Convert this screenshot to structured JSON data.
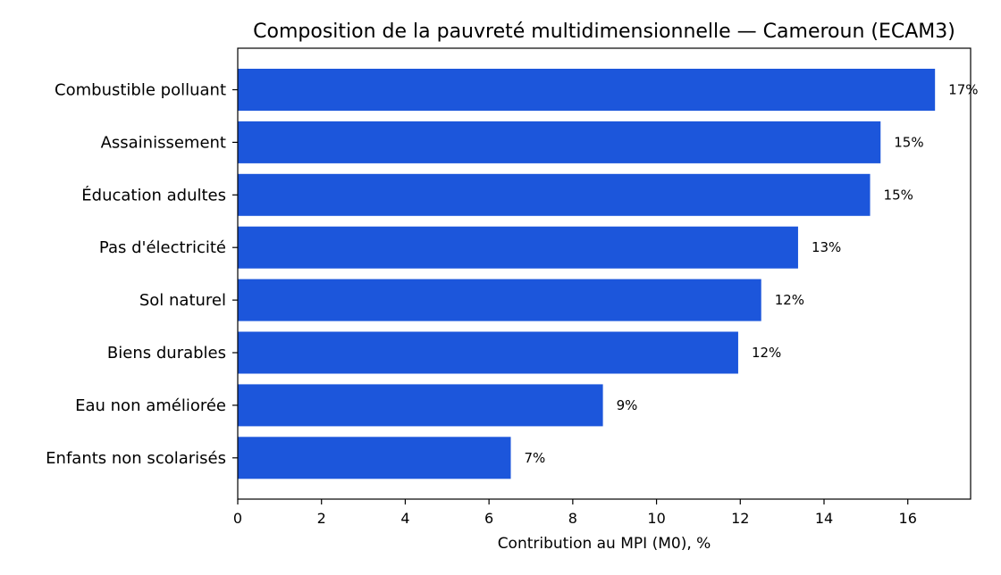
{
  "chart_data": {
    "type": "bar",
    "orientation": "horizontal",
    "title": "Composition de la pauvreté multidimensionnelle — Cameroun (ECAM3)",
    "xlabel": "Contribution au MPI (M0), %",
    "ylabel": "",
    "categories": [
      "Combustible polluant",
      "Assainissement",
      "Éducation adultes",
      "Pas d'électricité",
      "Sol naturel",
      "Biens durables",
      "Eau non améliorée",
      "Enfants non scolarisés"
    ],
    "values": [
      16.65,
      15.35,
      15.1,
      13.38,
      12.5,
      11.95,
      8.72,
      6.52
    ],
    "data_labels": [
      "17%",
      "15%",
      "15%",
      "13%",
      "12%",
      "12%",
      "9%",
      "7%"
    ],
    "xlim": [
      0,
      17.5
    ],
    "xticks": [
      0,
      2,
      4,
      6,
      8,
      10,
      12,
      14,
      16
    ],
    "grid": false,
    "bar_color": "#1c56db"
  }
}
